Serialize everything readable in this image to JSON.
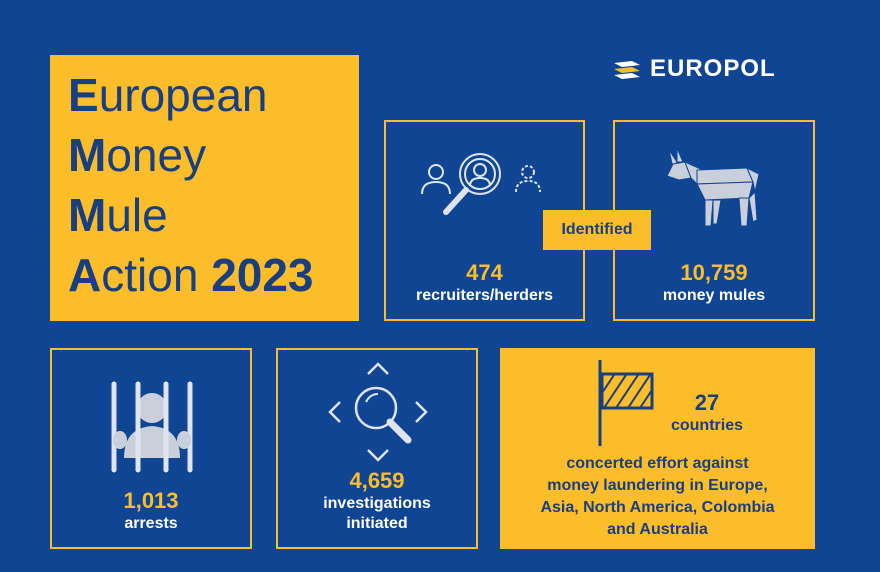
{
  "logo": {
    "text": "EUROPOL"
  },
  "title": {
    "line1_initial": "E",
    "line1_rest": "uropean",
    "line2_initial": "M",
    "line2_rest": "oney",
    "line3_initial": "M",
    "line3_rest": "ule",
    "line4_initial": "A",
    "line4_rest": "ction ",
    "line4_year": "2023"
  },
  "identified_label": "Identified",
  "stats": {
    "recruiters": {
      "value": "474",
      "label": "recruiters/herders",
      "icon": "magnifier-people-icon"
    },
    "mules": {
      "value": "10,759",
      "label": "money mules",
      "icon": "donkey-icon"
    },
    "arrests": {
      "value": "1,013",
      "label": "arrests",
      "icon": "prisoner-bars-icon"
    },
    "investigations": {
      "value": "4,659",
      "label_line1": "investigations",
      "label_line2": "initiated",
      "icon": "search-arrows-icon"
    },
    "countries": {
      "value": "27",
      "label": "countries",
      "icon": "flag-icon",
      "desc_line1": "concerted effort against",
      "desc_line2": "money laundering in Europe,",
      "desc_line3": "Asia, North America, Colombia",
      "desc_line4": "and Australia"
    }
  },
  "colors": {
    "background": "#0f4592",
    "accent": "#fbbd2a",
    "dark_text": "#1a3f80",
    "light_text": "#ffffff"
  }
}
